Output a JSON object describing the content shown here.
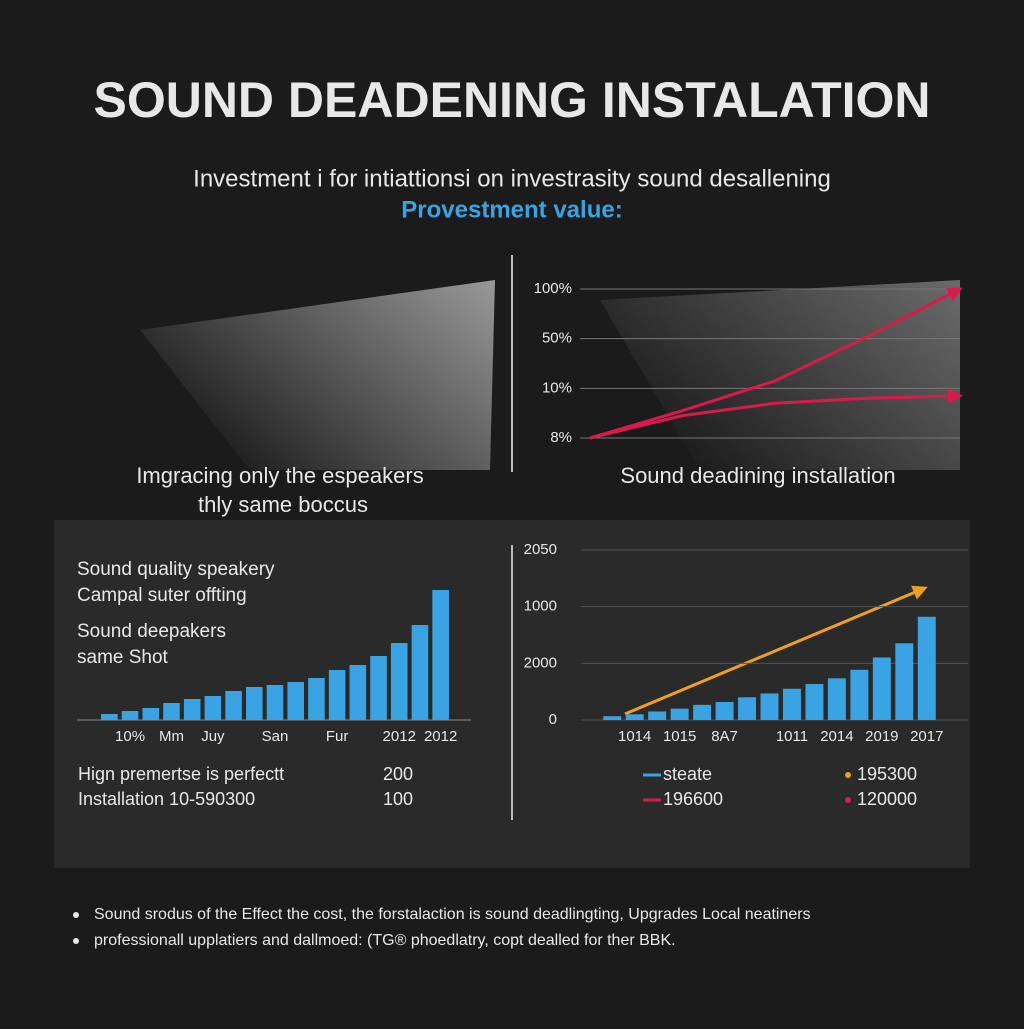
{
  "header": {
    "title": "SOUND DEADENING INSTALATION",
    "subtitle": "Investment i for intiattionsi on investrasity sound desallening",
    "highlight": "Provestment value:"
  },
  "spotlight": {
    "caption": [
      "Imgracing only the espeakers",
      "thly same boccus"
    ]
  },
  "chart_data": [
    {
      "type": "line",
      "title": "Sound deadining installation",
      "yticks": [
        {
          "value": 100,
          "label": "100%"
        },
        {
          "value": 50,
          "label": "50%"
        },
        {
          "value": 10,
          "label": "10%"
        },
        {
          "value": 8,
          "label": "8%"
        }
      ],
      "grid": true,
      "series": [
        {
          "color": "#d81b4a",
          "values": [
            8,
            9.1,
            16,
            52,
            100
          ]
        },
        {
          "color": "#d81b4a",
          "values": [
            8,
            8.9,
            9.4,
            9.6,
            9.7
          ]
        }
      ]
    },
    {
      "type": "bar",
      "color": "#3aa3e3",
      "ylim": [
        0,
        130
      ],
      "categories": [
        null,
        "10%",
        null,
        "Mm",
        null,
        "Juy",
        null,
        null,
        "San",
        null,
        null,
        "Fur",
        null,
        null,
        "2012",
        null,
        "2012"
      ],
      "values": [
        6,
        9,
        12,
        17,
        21,
        24,
        29,
        33,
        35,
        38,
        42,
        50,
        55,
        64,
        77,
        95,
        130
      ]
    },
    {
      "type": "bar",
      "color": "#3aa3e3",
      "ylim": [
        0,
        170
      ],
      "axis_labels": [
        "2050",
        "1000",
        "2000",
        "0"
      ],
      "categories": [
        null,
        "1014",
        null,
        "1015",
        null,
        "8A7",
        null,
        null,
        "1011",
        null,
        "2014",
        null,
        "2019",
        null,
        "2017"
      ],
      "values": [
        4,
        6,
        9,
        12,
        16,
        19,
        24,
        28,
        33,
        38,
        44,
        53,
        66,
        81,
        109
      ]
    }
  ],
  "left_panel": {
    "lines": [
      "Sound quality speakery",
      "Campal suter offting",
      "Sound deepakers",
      "same Shot"
    ],
    "rows": [
      [
        "Hign premertse is perfectt",
        "200"
      ],
      [
        "Installation 10-590300",
        "100"
      ]
    ]
  },
  "right_legend": [
    {
      "label": "steate",
      "color": "#3aa3e3"
    },
    {
      "label": "196600",
      "color": "#d81b4a"
    },
    {
      "label": "195300",
      "color": "#f0a020"
    },
    {
      "label": "120000",
      "color": "#d81b4a"
    }
  ],
  "notes": [
    "Sound srodus of the Effect the cost, the forstalaction is sound deadlingting, Upgrades Local neatiners",
    "professionall upplatiers and dallmoed: (TG® phoedlatry, copt dealled for ther BBK."
  ]
}
